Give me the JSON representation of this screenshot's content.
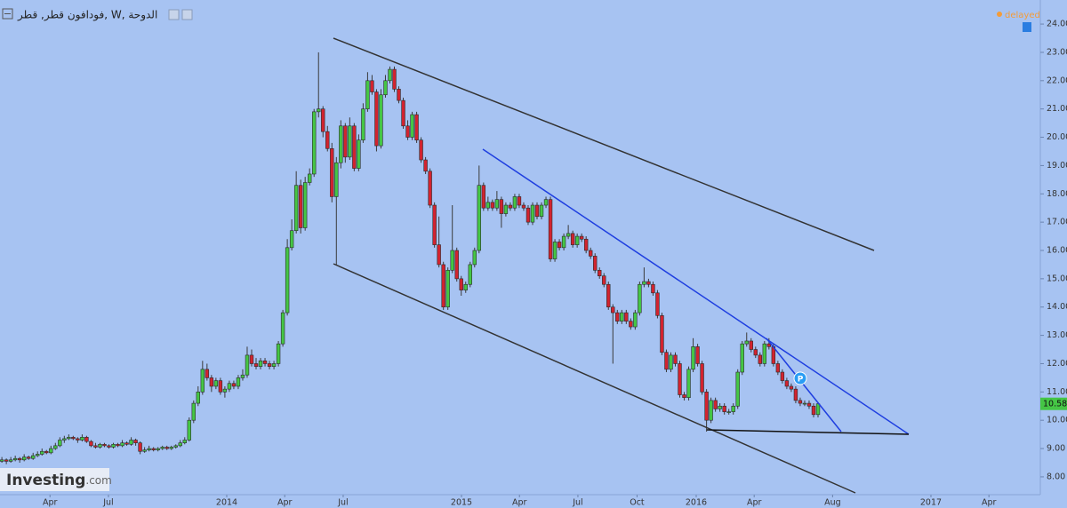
{
  "chart_data": {
    "type": "candlestick",
    "title": "فودافون قطر, قطر, W, الدوحة",
    "status": "delayed",
    "logo": "Investing",
    "logo_suffix": ".com",
    "marker_label": "P",
    "last_price": 10.58,
    "up_color": "#45c645",
    "down_color": "#d2232f",
    "xlim": [
      2013.034,
      2017.466
    ],
    "ylim": [
      7.37,
      24.85
    ],
    "xticks": [
      {
        "value": 2013.247,
        "label": "Apr"
      },
      {
        "value": 2013.496,
        "label": "Jul"
      },
      2014,
      {
        "value": 2014.247,
        "label": "Apr"
      },
      {
        "value": 2014.496,
        "label": "Jul"
      },
      2015,
      {
        "value": 2015.247,
        "label": "Apr"
      },
      {
        "value": 2015.496,
        "label": "Jul"
      },
      {
        "value": 2015.748,
        "label": "Oct"
      },
      2016,
      {
        "value": 2016.247,
        "label": "Apr"
      },
      {
        "value": 2016.581,
        "label": "Aug"
      },
      2017,
      {
        "value": 2017.247,
        "label": "Apr"
      }
    ],
    "yticks": [
      {
        "value": 8,
        "label": "8.00"
      },
      {
        "value": 9,
        "label": "9.00"
      },
      {
        "value": 10,
        "label": "10.00"
      },
      {
        "value": 11,
        "label": "11.00"
      },
      {
        "value": 12,
        "label": "12.00"
      },
      {
        "value": 13,
        "label": "13.00"
      },
      {
        "value": 14,
        "label": "14.00"
      },
      {
        "value": 15,
        "label": "15.00"
      },
      {
        "value": 16,
        "label": "16.00"
      },
      {
        "value": 17,
        "label": "17.00"
      },
      {
        "value": 18,
        "label": "18.00"
      },
      {
        "value": 19,
        "label": "19.00"
      },
      {
        "value": 20,
        "label": "20.00"
      },
      {
        "value": 21,
        "label": "21.00"
      },
      {
        "value": 22,
        "label": "22.00"
      },
      {
        "value": 23,
        "label": "23.00"
      },
      {
        "value": 24,
        "label": "24.00"
      }
    ],
    "x": [
      2013.042,
      2013.061,
      2013.08,
      2013.099,
      2013.118,
      2013.137,
      2013.156,
      2013.175,
      2013.194,
      2013.213,
      2013.232,
      2013.251,
      2013.27,
      2013.289,
      2013.308,
      2013.327,
      2013.346,
      2013.365,
      2013.384,
      2013.403,
      2013.422,
      2013.441,
      2013.46,
      2013.479,
      2013.498,
      2013.517,
      2013.536,
      2013.555,
      2013.574,
      2013.593,
      2013.612,
      2013.631,
      2013.65,
      2013.669,
      2013.688,
      2013.707,
      2013.726,
      2013.745,
      2013.764,
      2013.783,
      2013.802,
      2013.821,
      2013.84,
      2013.859,
      2013.878,
      2013.897,
      2013.916,
      2013.935,
      2013.954,
      2013.973,
      2013.992,
      2014.011,
      2014.03,
      2014.049,
      2014.068,
      2014.087,
      2014.106,
      2014.125,
      2014.144,
      2014.163,
      2014.182,
      2014.201,
      2014.22,
      2014.239,
      2014.258,
      2014.277,
      2014.296,
      2014.315,
      2014.334,
      2014.353,
      2014.372,
      2014.391,
      2014.41,
      2014.429,
      2014.448,
      2014.467,
      2014.486,
      2014.505,
      2014.524,
      2014.543,
      2014.562,
      2014.581,
      2014.6,
      2014.619,
      2014.638,
      2014.657,
      2014.676,
      2014.695,
      2014.714,
      2014.733,
      2014.752,
      2014.771,
      2014.79,
      2014.809,
      2014.828,
      2014.847,
      2014.866,
      2014.885,
      2014.904,
      2014.923,
      2014.942,
      2014.961,
      2014.98,
      2014.999,
      2015.018,
      2015.037,
      2015.056,
      2015.075,
      2015.094,
      2015.113,
      2015.132,
      2015.151,
      2015.17,
      2015.189,
      2015.208,
      2015.227,
      2015.246,
      2015.265,
      2015.284,
      2015.303,
      2015.322,
      2015.341,
      2015.36,
      2015.379,
      2015.398,
      2015.417,
      2015.436,
      2015.455,
      2015.474,
      2015.493,
      2015.512,
      2015.531,
      2015.55,
      2015.569,
      2015.588,
      2015.607,
      2015.626,
      2015.645,
      2015.664,
      2015.683,
      2015.702,
      2015.721,
      2015.74,
      2015.759,
      2015.778,
      2015.797,
      2015.816,
      2015.835,
      2015.854,
      2015.873,
      2015.892,
      2015.911,
      2015.93,
      2015.949,
      2015.968,
      2015.987,
      2016.006,
      2016.025,
      2016.044,
      2016.063,
      2016.082,
      2016.101,
      2016.12,
      2016.139,
      2016.158,
      2016.177,
      2016.196,
      2016.215,
      2016.234,
      2016.253,
      2016.272,
      2016.291,
      2016.31,
      2016.329,
      2016.348,
      2016.367,
      2016.386,
      2016.405,
      2016.424,
      2016.443,
      2016.462,
      2016.481,
      2016.5,
      2016.519
    ],
    "candles": [
      [
        8.55,
        8.7,
        8.5,
        8.6
      ],
      [
        8.6,
        8.65,
        8.45,
        8.55
      ],
      [
        8.55,
        8.7,
        8.5,
        8.6
      ],
      [
        8.6,
        8.75,
        8.55,
        8.65
      ],
      [
        8.65,
        8.7,
        8.5,
        8.6
      ],
      [
        8.6,
        8.8,
        8.55,
        8.7
      ],
      [
        8.7,
        8.75,
        8.6,
        8.65
      ],
      [
        8.65,
        8.85,
        8.6,
        8.75
      ],
      [
        8.75,
        8.9,
        8.7,
        8.8
      ],
      [
        8.8,
        9.0,
        8.75,
        8.9
      ],
      [
        8.9,
        8.95,
        8.8,
        8.85
      ],
      [
        8.85,
        9.1,
        8.8,
        9.0
      ],
      [
        9.0,
        9.2,
        8.95,
        9.1
      ],
      [
        9.1,
        9.4,
        9.05,
        9.3
      ],
      [
        9.3,
        9.45,
        9.2,
        9.35
      ],
      [
        9.35,
        9.5,
        9.3,
        9.4
      ],
      [
        9.4,
        9.45,
        9.3,
        9.35
      ],
      [
        9.35,
        9.4,
        9.2,
        9.3
      ],
      [
        9.3,
        9.5,
        9.25,
        9.4
      ],
      [
        9.4,
        9.45,
        9.2,
        9.25
      ],
      [
        9.25,
        9.3,
        9.05,
        9.1
      ],
      [
        9.1,
        9.2,
        9.0,
        9.05
      ],
      [
        9.05,
        9.2,
        9.0,
        9.15
      ],
      [
        9.15,
        9.2,
        9.05,
        9.1
      ],
      [
        9.1,
        9.15,
        9.0,
        9.05
      ],
      [
        9.05,
        9.2,
        9.0,
        9.15
      ],
      [
        9.15,
        9.2,
        9.05,
        9.1
      ],
      [
        9.1,
        9.3,
        9.05,
        9.2
      ],
      [
        9.2,
        9.25,
        9.1,
        9.15
      ],
      [
        9.15,
        9.4,
        9.1,
        9.3
      ],
      [
        9.3,
        9.35,
        9.1,
        9.2
      ],
      [
        9.2,
        9.25,
        8.8,
        8.9
      ],
      [
        8.9,
        9.05,
        8.85,
        8.95
      ],
      [
        8.95,
        9.1,
        8.9,
        9.0
      ],
      [
        9.0,
        9.05,
        8.9,
        8.95
      ],
      [
        8.95,
        9.05,
        8.9,
        9.0
      ],
      [
        9.0,
        9.1,
        8.95,
        9.05
      ],
      [
        9.05,
        9.1,
        8.95,
        9.0
      ],
      [
        9.0,
        9.1,
        8.95,
        9.05
      ],
      [
        9.05,
        9.15,
        9.0,
        9.1
      ],
      [
        9.1,
        9.3,
        9.05,
        9.2
      ],
      [
        9.2,
        9.4,
        9.15,
        9.3
      ],
      [
        9.3,
        10.1,
        9.25,
        10.0
      ],
      [
        10.0,
        10.7,
        9.9,
        10.6
      ],
      [
        10.6,
        11.2,
        10.5,
        11.0
      ],
      [
        11.0,
        12.1,
        10.9,
        11.8
      ],
      [
        11.8,
        12.0,
        11.4,
        11.5
      ],
      [
        11.5,
        11.6,
        11.0,
        11.2
      ],
      [
        11.2,
        11.5,
        11.1,
        11.4
      ],
      [
        11.4,
        11.5,
        10.9,
        11.0
      ],
      [
        11.0,
        11.2,
        10.8,
        11.1
      ],
      [
        11.1,
        11.4,
        11.0,
        11.3
      ],
      [
        11.3,
        11.4,
        11.1,
        11.2
      ],
      [
        11.2,
        11.6,
        11.1,
        11.5
      ],
      [
        11.5,
        11.8,
        11.4,
        11.6
      ],
      [
        11.6,
        12.6,
        11.5,
        12.3
      ],
      [
        12.3,
        12.5,
        11.9,
        12.0
      ],
      [
        12.0,
        12.2,
        11.8,
        11.9
      ],
      [
        11.9,
        12.2,
        11.8,
        12.1
      ],
      [
        12.1,
        12.2,
        11.9,
        12.0
      ],
      [
        12.0,
        12.1,
        11.8,
        11.9
      ],
      [
        11.9,
        12.1,
        11.8,
        12.0
      ],
      [
        12.0,
        12.8,
        11.9,
        12.7
      ],
      [
        12.7,
        13.9,
        12.6,
        13.8
      ],
      [
        13.8,
        16.4,
        13.7,
        16.1
      ],
      [
        16.1,
        17.1,
        16.0,
        16.7
      ],
      [
        16.7,
        18.8,
        16.6,
        18.3
      ],
      [
        18.3,
        18.5,
        16.6,
        16.8
      ],
      [
        16.8,
        18.6,
        16.7,
        18.4
      ],
      [
        18.4,
        18.9,
        18.3,
        18.7
      ],
      [
        18.7,
        21.0,
        18.6,
        20.9
      ],
      [
        20.9,
        23.0,
        20.7,
        21.0
      ],
      [
        21.0,
        21.1,
        20.0,
        20.2
      ],
      [
        20.2,
        20.4,
        19.5,
        19.6
      ],
      [
        19.6,
        19.8,
        17.7,
        17.9
      ],
      [
        17.9,
        19.3,
        15.5,
        19.1
      ],
      [
        19.1,
        20.6,
        18.9,
        20.4
      ],
      [
        20.4,
        20.5,
        19.1,
        19.3
      ],
      [
        19.3,
        20.7,
        19.2,
        20.4
      ],
      [
        20.4,
        20.5,
        18.8,
        18.9
      ],
      [
        18.9,
        20.1,
        18.8,
        19.9
      ],
      [
        19.9,
        21.2,
        19.8,
        21.0
      ],
      [
        21.0,
        22.3,
        20.9,
        22.0
      ],
      [
        22.0,
        22.2,
        21.5,
        21.6
      ],
      [
        21.6,
        21.7,
        19.5,
        19.7
      ],
      [
        19.7,
        21.7,
        19.6,
        21.5
      ],
      [
        21.5,
        22.2,
        21.4,
        22.0
      ],
      [
        22.0,
        22.5,
        21.9,
        22.4
      ],
      [
        22.4,
        22.5,
        21.6,
        21.7
      ],
      [
        21.7,
        21.8,
        21.2,
        21.3
      ],
      [
        21.3,
        21.4,
        20.3,
        20.4
      ],
      [
        20.4,
        20.6,
        19.9,
        20.0
      ],
      [
        20.0,
        20.9,
        19.9,
        20.8
      ],
      [
        20.8,
        20.9,
        19.8,
        19.9
      ],
      [
        19.9,
        20.0,
        19.1,
        19.2
      ],
      [
        19.2,
        19.3,
        18.7,
        18.8
      ],
      [
        18.8,
        18.9,
        17.5,
        17.6
      ],
      [
        17.6,
        17.7,
        16.1,
        16.2
      ],
      [
        16.2,
        17.2,
        15.4,
        15.5
      ],
      [
        15.5,
        15.6,
        13.9,
        14.0
      ],
      [
        14.0,
        15.4,
        13.9,
        15.3
      ],
      [
        15.3,
        17.6,
        15.2,
        16.0
      ],
      [
        16.0,
        16.1,
        14.9,
        15.0
      ],
      [
        15.0,
        15.1,
        14.4,
        14.6
      ],
      [
        14.6,
        14.9,
        14.5,
        14.8
      ],
      [
        14.8,
        15.6,
        14.7,
        15.5
      ],
      [
        15.5,
        16.1,
        15.4,
        16.0
      ],
      [
        16.0,
        19.0,
        15.9,
        18.3
      ],
      [
        18.3,
        18.4,
        17.4,
        17.5
      ],
      [
        17.5,
        17.9,
        17.4,
        17.7
      ],
      [
        17.7,
        17.8,
        17.4,
        17.5
      ],
      [
        17.5,
        18.1,
        17.4,
        17.8
      ],
      [
        17.8,
        17.9,
        16.8,
        17.3
      ],
      [
        17.3,
        17.7,
        17.2,
        17.6
      ],
      [
        17.6,
        17.7,
        17.4,
        17.5
      ],
      [
        17.5,
        18.0,
        17.4,
        17.9
      ],
      [
        17.9,
        18.0,
        17.5,
        17.6
      ],
      [
        17.6,
        17.7,
        17.4,
        17.5
      ],
      [
        17.5,
        17.6,
        16.9,
        17.0
      ],
      [
        17.0,
        17.7,
        16.9,
        17.6
      ],
      [
        17.6,
        17.7,
        17.1,
        17.2
      ],
      [
        17.2,
        17.7,
        17.1,
        17.6
      ],
      [
        17.6,
        17.9,
        17.5,
        17.8
      ],
      [
        17.8,
        17.9,
        15.6,
        15.7
      ],
      [
        15.7,
        16.4,
        15.6,
        16.3
      ],
      [
        16.3,
        16.4,
        16.0,
        16.1
      ],
      [
        16.1,
        16.6,
        16.0,
        16.5
      ],
      [
        16.5,
        16.9,
        16.4,
        16.6
      ],
      [
        16.6,
        16.7,
        16.1,
        16.2
      ],
      [
        16.2,
        16.6,
        16.1,
        16.5
      ],
      [
        16.5,
        16.6,
        16.3,
        16.4
      ],
      [
        16.4,
        16.5,
        15.9,
        16.0
      ],
      [
        16.0,
        16.1,
        15.7,
        15.8
      ],
      [
        15.8,
        15.9,
        15.2,
        15.3
      ],
      [
        15.3,
        15.4,
        15.0,
        15.1
      ],
      [
        15.1,
        15.2,
        14.7,
        14.8
      ],
      [
        14.8,
        14.9,
        13.9,
        14.0
      ],
      [
        14.0,
        14.1,
        12.0,
        13.8
      ],
      [
        13.8,
        13.9,
        13.4,
        13.5
      ],
      [
        13.5,
        13.9,
        13.4,
        13.8
      ],
      [
        13.8,
        13.9,
        13.4,
        13.5
      ],
      [
        13.5,
        13.6,
        13.2,
        13.3
      ],
      [
        13.3,
        13.9,
        13.2,
        13.8
      ],
      [
        13.8,
        14.9,
        13.7,
        14.8
      ],
      [
        14.8,
        15.4,
        14.7,
        14.9
      ],
      [
        14.9,
        15.0,
        14.7,
        14.8
      ],
      [
        14.8,
        14.9,
        14.4,
        14.5
      ],
      [
        14.5,
        14.6,
        13.6,
        13.7
      ],
      [
        13.7,
        13.8,
        12.3,
        12.4
      ],
      [
        12.4,
        12.5,
        11.7,
        11.8
      ],
      [
        11.8,
        12.4,
        11.7,
        12.3
      ],
      [
        12.3,
        12.4,
        11.9,
        12.0
      ],
      [
        12.0,
        12.1,
        10.8,
        10.9
      ],
      [
        10.9,
        11.0,
        10.7,
        10.8
      ],
      [
        10.8,
        11.9,
        10.7,
        11.8
      ],
      [
        11.8,
        12.9,
        11.7,
        12.6
      ],
      [
        12.6,
        12.7,
        11.9,
        12.0
      ],
      [
        12.0,
        12.1,
        10.9,
        11.0
      ],
      [
        11.0,
        11.1,
        9.6,
        10.0
      ],
      [
        10.0,
        10.8,
        9.9,
        10.7
      ],
      [
        10.7,
        10.8,
        10.3,
        10.4
      ],
      [
        10.4,
        10.6,
        10.3,
        10.5
      ],
      [
        10.5,
        10.6,
        10.2,
        10.3
      ],
      [
        10.3,
        10.4,
        10.2,
        10.3
      ],
      [
        10.3,
        10.6,
        10.2,
        10.5
      ],
      [
        10.5,
        11.8,
        10.4,
        11.7
      ],
      [
        11.7,
        12.8,
        11.6,
        12.7
      ],
      [
        12.7,
        13.1,
        12.6,
        12.8
      ],
      [
        12.8,
        12.9,
        12.4,
        12.5
      ],
      [
        12.5,
        12.6,
        12.2,
        12.3
      ],
      [
        12.3,
        12.4,
        11.9,
        12.0
      ],
      [
        12.0,
        12.8,
        11.9,
        12.7
      ],
      [
        12.7,
        12.9,
        12.5,
        12.6
      ],
      [
        12.6,
        12.7,
        11.9,
        12.0
      ],
      [
        12.0,
        12.1,
        11.6,
        11.7
      ],
      [
        11.7,
        11.8,
        11.3,
        11.4
      ],
      [
        11.4,
        11.5,
        11.1,
        11.2
      ],
      [
        11.2,
        11.3,
        11.0,
        11.1
      ],
      [
        11.1,
        11.2,
        10.6,
        10.7
      ],
      [
        10.7,
        10.8,
        10.5,
        10.6
      ],
      [
        10.6,
        10.7,
        10.5,
        10.6
      ],
      [
        10.6,
        10.7,
        10.4,
        10.5
      ],
      [
        10.5,
        10.6,
        10.1,
        10.2
      ],
      [
        10.2,
        10.6,
        10.1,
        10.58
      ]
    ]
  }
}
